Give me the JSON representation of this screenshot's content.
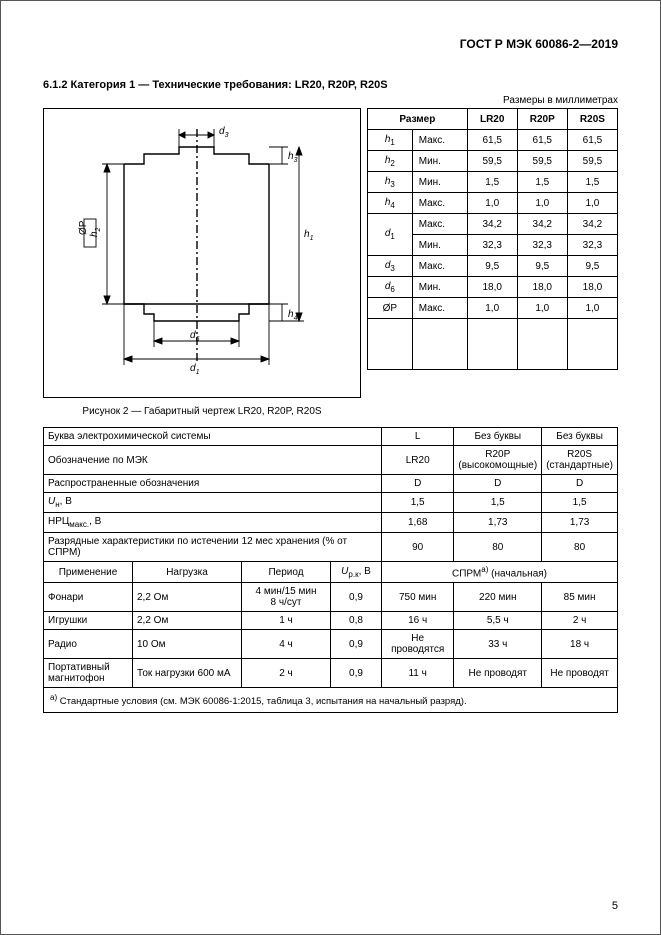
{
  "doc_id": "ГОСТ Р МЭК 60086-2—2019",
  "section_title": "6.1.2 Категория 1 — Технические требования: LR20, R20P, R20S",
  "units_note": "Размеры в миллиметрах",
  "dim_table": {
    "header": [
      "Размер",
      "",
      "LR20",
      "R20P",
      "R20S"
    ],
    "rows": [
      {
        "sym": "h",
        "sub": "1",
        "cond": "Макс.",
        "v": [
          "61,5",
          "61,5",
          "61,5"
        ]
      },
      {
        "sym": "h",
        "sub": "2",
        "cond": "Мин.",
        "v": [
          "59,5",
          "59,5",
          "59,5"
        ]
      },
      {
        "sym": "h",
        "sub": "3",
        "cond": "Мин.",
        "v": [
          "1,5",
          "1,5",
          "1,5"
        ]
      },
      {
        "sym": "h",
        "sub": "4",
        "cond": "Макс.",
        "v": [
          "1,0",
          "1,0",
          "1,0"
        ]
      },
      {
        "sym": "d",
        "sub": "1",
        "cond": "Макс.",
        "v": [
          "34,2",
          "34,2",
          "34,2"
        ],
        "rowspan": true
      },
      {
        "sym": "",
        "sub": "",
        "cond": "Мин.",
        "v": [
          "32,3",
          "32,3",
          "32,3"
        ],
        "cont": true
      },
      {
        "sym": "d",
        "sub": "3",
        "cond": "Макс.",
        "v": [
          "9,5",
          "9,5",
          "9,5"
        ]
      },
      {
        "sym": "d",
        "sub": "6",
        "cond": "Мин.",
        "v": [
          "18,0",
          "18,0",
          "18,0"
        ]
      },
      {
        "sym": "ØP",
        "sub": "",
        "cond": "Макс.",
        "v": [
          "1,0",
          "1,0",
          "1,0"
        ]
      }
    ]
  },
  "caption": "Рисунок 2 — Габаритный чертеж LR20, R20P, R20S",
  "main_table": {
    "r1": {
      "label": "Буква электрохимической системы",
      "v": [
        "L",
        "Без буквы",
        "Без буквы"
      ]
    },
    "r2": {
      "label": "Обозначение по МЭК",
      "v": [
        "LR20",
        "R20P\n(высокомощные)",
        "R20S\n(стандартные)"
      ]
    },
    "r3": {
      "label": "Распространенные обозначения",
      "v": [
        "D",
        "D",
        "D"
      ]
    },
    "r4": {
      "label": "Uₙ, В",
      "raw": "U",
      "sub": "н",
      "unit": ", В",
      "v": [
        "1,5",
        "1,5",
        "1,5"
      ]
    },
    "r5": {
      "label": "НРЦмакс., В",
      "raw": "НРЦ",
      "sub": "макс.",
      "unit": ", В",
      "v": [
        "1,68",
        "1,73",
        "1,73"
      ]
    },
    "r6": {
      "label": "Разрядные характеристики по истечении 12 мес хранения (% от СПРМ)",
      "v": [
        "90",
        "80",
        "80"
      ]
    },
    "r7_headers": [
      "Применение",
      "Нагрузка",
      "Период",
      "Uр.к, В",
      "СПРМᵃ⁾ (начальная)"
    ],
    "r7_ucol": {
      "sym": "U",
      "sub": "р.к",
      "unit": ", В"
    },
    "r7_merge": "СПРМ",
    "r7_sup": "a)",
    "r7_tail": " (начальная)",
    "rows": [
      {
        "app": "Фонари",
        "load": "2,2 Ом",
        "period": "4 мин/15 мин\n8 ч/сут",
        "u": "0,9",
        "v": [
          "750 мин",
          "220 мин",
          "85 мин"
        ]
      },
      {
        "app": "Игрушки",
        "load": "2,2 Ом",
        "period": "1 ч",
        "u": "0,8",
        "v": [
          "16 ч",
          "5,5 ч",
          "2 ч"
        ]
      },
      {
        "app": "Радио",
        "load": "10 Ом",
        "period": "4 ч",
        "u": "0,9",
        "v": [
          "Не проводятся",
          "33 ч",
          "18 ч"
        ]
      },
      {
        "app": "Портативный магнитофон",
        "load": "Ток нагрузки 600 мА",
        "period": "2 ч",
        "u": "0,9",
        "v": [
          "11 ч",
          "Не проводят",
          "Не проводят"
        ]
      }
    ],
    "footnote_label": "a)",
    "footnote": " Стандартные условия (см. МЭК 60086-1:2015, таблица 3, испытания на начальный разряд)."
  },
  "page_number": "5",
  "drawing": {
    "labels": {
      "d3": "d₃",
      "d6": "d₆",
      "d1": "d₁",
      "h1": "h₁",
      "h2": "h₂",
      "h3": "h₃",
      "h4": "h₄",
      "op": "ØP"
    },
    "stroke": "#000",
    "stroke_width": 1.2
  }
}
